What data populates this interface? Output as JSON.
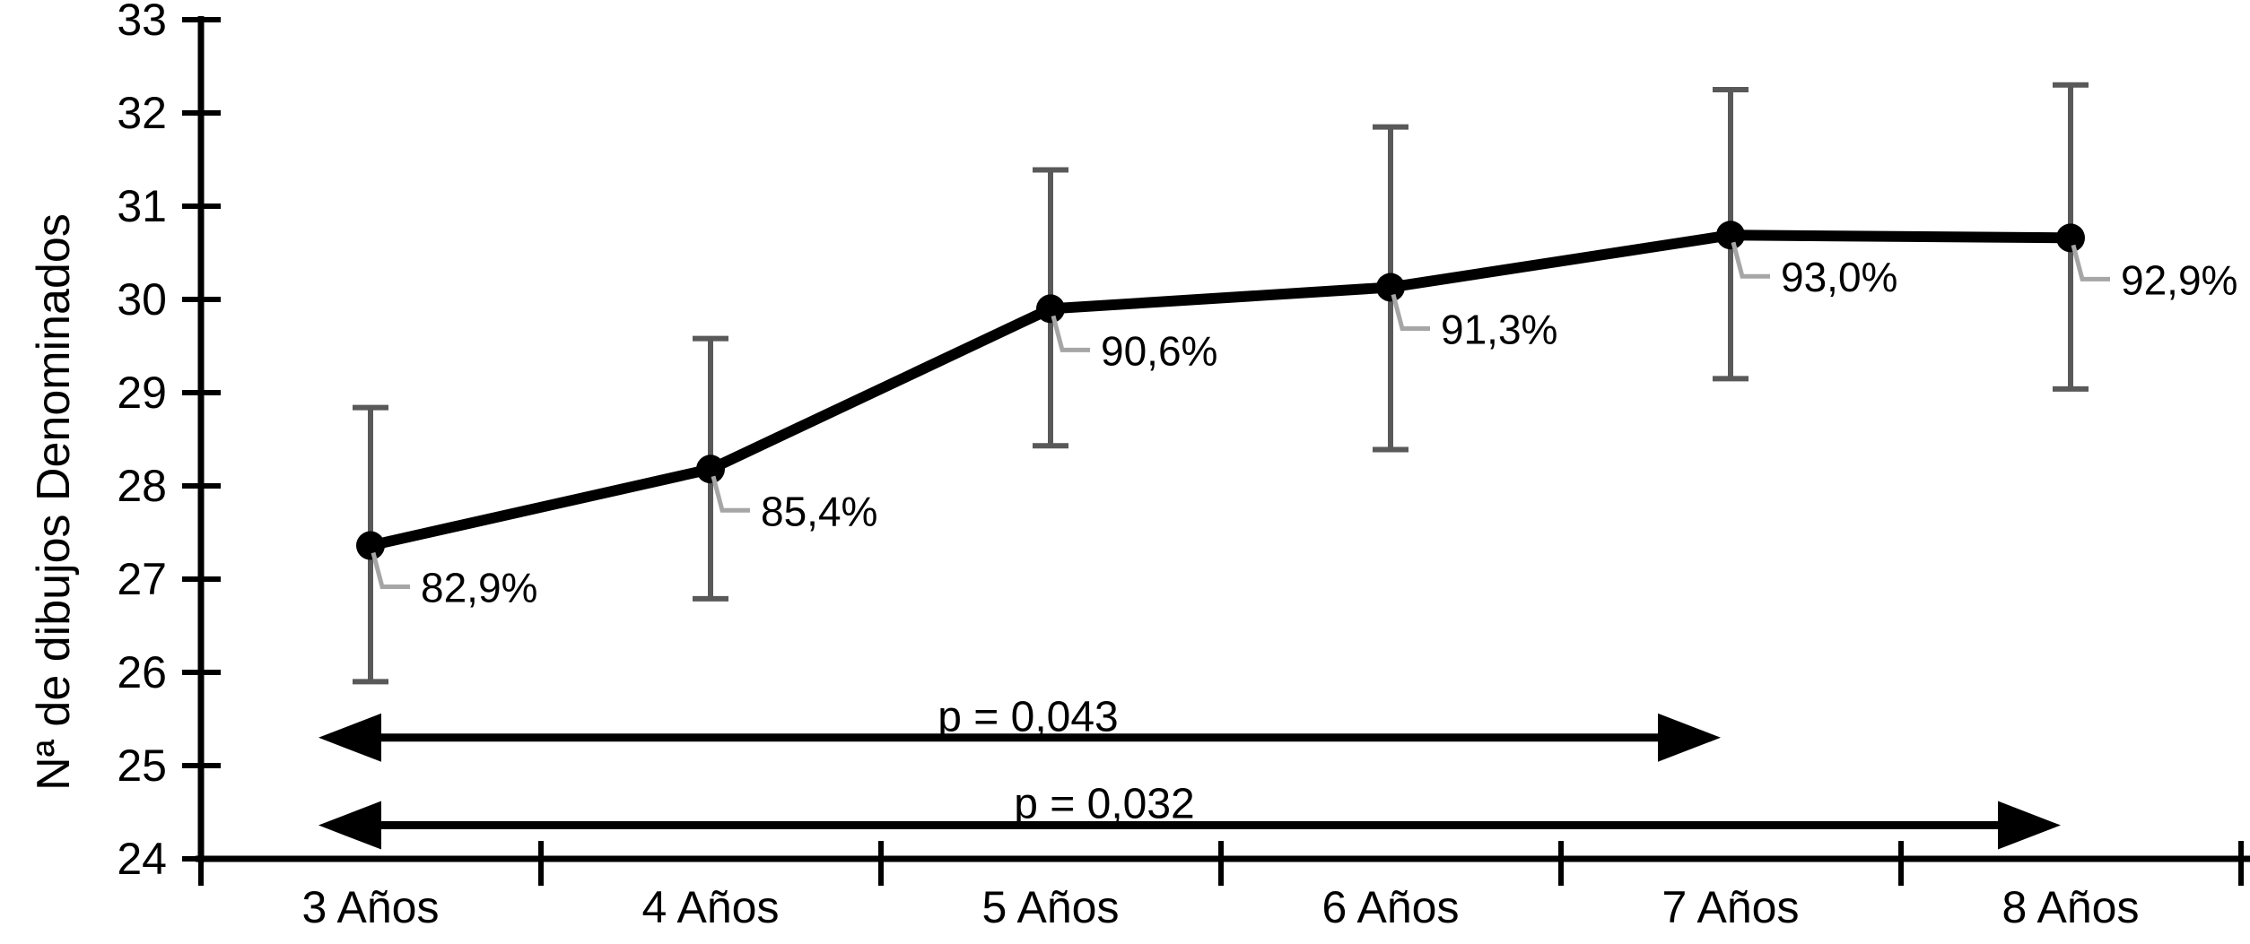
{
  "chart_data": {
    "type": "line",
    "title": "",
    "xlabel": "",
    "ylabel": "Nª de dibujos Denominados",
    "ylim": [
      24,
      33
    ],
    "yticks": [
      24,
      25,
      26,
      27,
      28,
      29,
      30,
      31,
      32,
      33
    ],
    "grid": false,
    "legend": "none",
    "categories": [
      "3 Años",
      "4 Años",
      "5 Años",
      "6 Años",
      "7 Años",
      "8 Años"
    ],
    "series": [
      {
        "name": "Nª de dibujos Denominados",
        "values": [
          27.36,
          28.18,
          29.9,
          30.13,
          30.69,
          30.66
        ],
        "error_low": [
          25.9,
          26.79,
          28.43,
          28.39,
          29.15,
          29.04
        ],
        "error_high": [
          28.84,
          29.58,
          31.39,
          31.85,
          32.25,
          32.3
        ],
        "point_labels": [
          "82,9%",
          "85,4%",
          "90,6%",
          "91,3%",
          "93,0%",
          "92,9%"
        ]
      }
    ],
    "annotations": [
      {
        "label": "p = 0,043",
        "from_category": "3 Años",
        "to_category": "7 Años",
        "y_value": 25.3
      },
      {
        "label": "p = 0,032",
        "from_category": "3 Años",
        "to_category": "8 Años",
        "y_value": 24.36
      }
    ],
    "colors": {
      "line": "#000000",
      "marker": "#000000",
      "error_bar": "#595959",
      "leader": "#a6a6a6",
      "axis": "#000000",
      "text": "#000000",
      "background": "#ffffff"
    }
  }
}
